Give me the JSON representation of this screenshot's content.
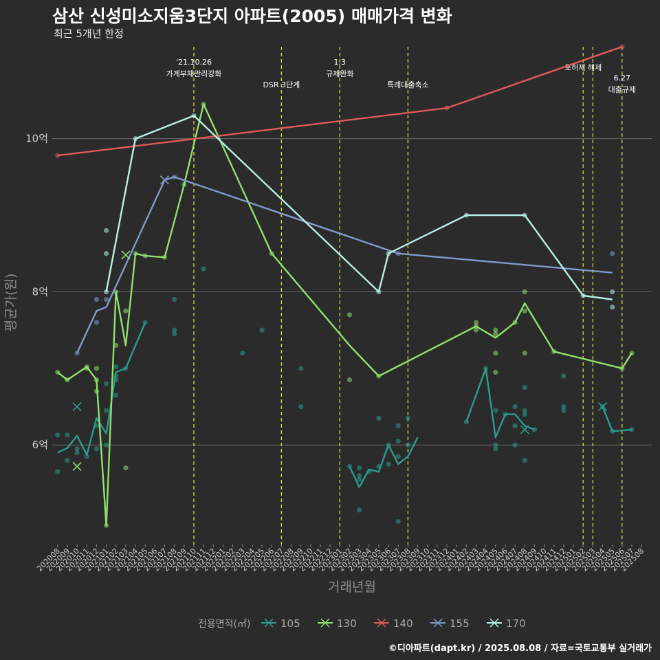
{
  "title": "삼산 신성미소지움3단지 아파트(2005) 매매가격 변화",
  "subtitle": "최근 5개년 한정",
  "caption": "©디아파트(dapt.kr) / 2025.08.08 / 자료=국토교통부 실거래가",
  "chart_data": {
    "type": "line",
    "xlabel": "거래년월",
    "ylabel": "평균가(원)",
    "y_unit": "억",
    "ylim": [
      4.7,
      11.2
    ],
    "yticks": [
      6,
      8,
      10
    ],
    "ytick_labels": [
      "6억",
      "8억",
      "10억"
    ],
    "grid": true,
    "x_months": [
      "202008",
      "202009",
      "202010",
      "202011",
      "202012",
      "202101",
      "202102",
      "202103",
      "202104",
      "202105",
      "202106",
      "202107",
      "202108",
      "202109",
      "202110",
      "202111",
      "202112",
      "202201",
      "202202",
      "202203",
      "202204",
      "202205",
      "202206",
      "202207",
      "202208",
      "202209",
      "202210",
      "202211",
      "202212",
      "202301",
      "202302",
      "202303",
      "202304",
      "202305",
      "202306",
      "202307",
      "202308",
      "202309",
      "202310",
      "202311",
      "202312",
      "202401",
      "202402",
      "202403",
      "202404",
      "202405",
      "202406",
      "202407",
      "202408",
      "202409",
      "202410",
      "202411",
      "202412",
      "202501",
      "202502",
      "202503",
      "202504",
      "202505",
      "202506",
      "202507",
      "202508"
    ],
    "events": [
      {
        "x": "202110",
        "labels": [
          "'21.10.26",
          "가계부채관리강화"
        ]
      },
      {
        "x": "202207",
        "labels": [
          "DSR 3단계"
        ]
      },
      {
        "x": "202301",
        "labels": [
          "1.3",
          "규제완화"
        ]
      },
      {
        "x": "202308",
        "labels": [
          "특례대출축소"
        ]
      },
      {
        "x": "202502",
        "labels": [
          "토허제 해제"
        ]
      },
      {
        "x": "202503",
        "labels": []
      },
      {
        "x": "202506",
        "labels": [
          "6.27",
          "대출규제"
        ]
      }
    ],
    "legend": {
      "title": "전용면적(㎡)",
      "position": "bottom"
    },
    "series": [
      {
        "name": "105",
        "color": "#2a9d8f",
        "line": [
          [
            "202008",
            5.9
          ],
          [
            "202009",
            5.96
          ],
          [
            "202010",
            6.12
          ],
          [
            "202011",
            5.87
          ],
          [
            "202012",
            6.35
          ],
          [
            "202101",
            6.15
          ],
          [
            "202102",
            6.95
          ],
          [
            "202103",
            7.0
          ],
          [
            "202105",
            7.6
          ],
          null,
          [
            "202302",
            5.72
          ],
          [
            "202303",
            5.45
          ],
          [
            "202304",
            5.68
          ],
          [
            "202305",
            5.65
          ],
          [
            "202306",
            6.0
          ],
          [
            "202307",
            5.75
          ],
          [
            "202308",
            5.85
          ],
          [
            "202309",
            6.1
          ],
          null,
          [
            "202402",
            6.3
          ],
          [
            "202404",
            7.0
          ],
          [
            "202405",
            6.1
          ],
          [
            "202406",
            6.4
          ],
          [
            "202407",
            6.4
          ],
          [
            "202408",
            6.25
          ],
          [
            "202409",
            6.2
          ],
          null,
          [
            "202504",
            6.5
          ],
          [
            "202505",
            6.18
          ],
          [
            "202507",
            6.2
          ]
        ],
        "points": [
          [
            "202008",
            6.13
          ],
          [
            "202008",
            5.65
          ],
          [
            "202009",
            6.13
          ],
          [
            "202009",
            5.8
          ],
          [
            "202010",
            5.9
          ],
          [
            "202010",
            5.95
          ],
          [
            "202011",
            5.85
          ],
          [
            "202012",
            6.25
          ],
          [
            "202012",
            5.95
          ],
          [
            "202101",
            6.8
          ],
          [
            "202101",
            6.45
          ],
          [
            "202101",
            6.0
          ],
          [
            "202102",
            7.02
          ],
          [
            "202102",
            6.9
          ],
          [
            "202102",
            6.85
          ],
          [
            "202102",
            6.65
          ],
          [
            "202103",
            7.0
          ],
          [
            "202105",
            7.6
          ],
          [
            "202108",
            7.5
          ],
          [
            "202108",
            7.45
          ],
          [
            "202108",
            7.9
          ],
          [
            "202111",
            8.3
          ],
          [
            "202203",
            7.2
          ],
          [
            "202205",
            7.5
          ],
          [
            "202209",
            7.0
          ],
          [
            "202209",
            6.5
          ],
          [
            "202302",
            5.72
          ],
          [
            "202303",
            5.15
          ],
          [
            "202303",
            5.7
          ],
          [
            "202303",
            5.6
          ],
          [
            "202303",
            5.55
          ],
          [
            "202304",
            5.65
          ],
          [
            "202305",
            6.35
          ],
          [
            "202305",
            5.72
          ],
          [
            "202306",
            6.0
          ],
          [
            "202306",
            5.75
          ],
          [
            "202307",
            6.05
          ],
          [
            "202307",
            5.85
          ],
          [
            "202307",
            6.25
          ],
          [
            "202307",
            5.0
          ],
          [
            "202308",
            6.35
          ],
          [
            "202308",
            6.0
          ],
          [
            "202402",
            6.3
          ],
          [
            "202404",
            7.0
          ],
          [
            "202405",
            6.45
          ],
          [
            "202405",
            6.0
          ],
          [
            "202405",
            5.95
          ],
          [
            "202406",
            6.4
          ],
          [
            "202407",
            6.5
          ],
          [
            "202407",
            6.25
          ],
          [
            "202407",
            6.0
          ],
          [
            "202408",
            6.45
          ],
          [
            "202408",
            6.4
          ],
          [
            "202408",
            5.8
          ],
          [
            "202408",
            6.75
          ],
          [
            "202409",
            6.2
          ],
          [
            "202412",
            6.9
          ],
          [
            "202412",
            6.5
          ],
          [
            "202412",
            6.45
          ],
          [
            "202504",
            6.5
          ],
          [
            "202505",
            6.18
          ],
          [
            "202507",
            6.2
          ]
        ],
        "cancelled": [
          [
            "202010",
            6.5
          ],
          [
            "202408",
            6.2
          ],
          [
            "202504",
            6.5
          ]
        ]
      },
      {
        "name": "130",
        "color": "#8fe26c",
        "line": [
          [
            "202008",
            6.95
          ],
          [
            "202009",
            6.85
          ],
          [
            "202011",
            7.02
          ],
          [
            "202012",
            6.85
          ],
          [
            "202101",
            4.95
          ],
          [
            "202102",
            8.0
          ],
          [
            "202103",
            7.3
          ],
          [
            "202104",
            8.5
          ],
          [
            "202105",
            8.47
          ],
          [
            "202107",
            8.45
          ],
          [
            "202109",
            9.4
          ],
          [
            "202111",
            10.45
          ],
          [
            "202206",
            8.5
          ],
          [
            "202302",
            7.3
          ],
          [
            "202305",
            6.9
          ],
          [
            "202403",
            7.55
          ],
          [
            "202405",
            7.4
          ],
          [
            "202407",
            7.6
          ],
          [
            "202408",
            7.85
          ],
          [
            "202411",
            7.22
          ],
          [
            "202506",
            7.0
          ],
          [
            "202507",
            7.2
          ]
        ],
        "points": [
          [
            "202008",
            6.95
          ],
          [
            "202009",
            6.85
          ],
          [
            "202011",
            7.02
          ],
          [
            "202011",
            7.0
          ],
          [
            "202012",
            6.85
          ],
          [
            "202012",
            7.0
          ],
          [
            "202012",
            6.7
          ],
          [
            "202101",
            4.95
          ],
          [
            "202102",
            8.0
          ],
          [
            "202102",
            7.3
          ],
          [
            "202103",
            7.75
          ],
          [
            "202103",
            5.7
          ],
          [
            "202104",
            8.5
          ],
          [
            "202105",
            8.47
          ],
          [
            "202107",
            8.45
          ],
          [
            "202109",
            9.4
          ],
          [
            "202111",
            10.45
          ],
          [
            "202206",
            8.5
          ],
          [
            "202302",
            7.7
          ],
          [
            "202302",
            6.85
          ],
          [
            "202305",
            6.9
          ],
          [
            "202403",
            7.6
          ],
          [
            "202403",
            7.55
          ],
          [
            "202403",
            7.5
          ],
          [
            "202405",
            7.5
          ],
          [
            "202405",
            7.45
          ],
          [
            "202405",
            7.2
          ],
          [
            "202405",
            6.95
          ],
          [
            "202407",
            7.6
          ],
          [
            "202408",
            8.0
          ],
          [
            "202408",
            7.75
          ],
          [
            "202408",
            7.2
          ],
          [
            "202411",
            7.22
          ],
          [
            "202506",
            7.0
          ],
          [
            "202507",
            7.2
          ]
        ],
        "cancelled": [
          [
            "202010",
            5.72
          ],
          [
            "202103",
            8.48
          ]
        ]
      },
      {
        "name": "140",
        "color": "#e05a5a",
        "line": [
          [
            "202008",
            9.78
          ],
          [
            "202312",
            10.4
          ],
          [
            "202506",
            11.2
          ]
        ],
        "points": [
          [
            "202008",
            9.78
          ],
          [
            "202312",
            10.4
          ],
          [
            "202506",
            11.2
          ]
        ],
        "cancelled": []
      },
      {
        "name": "155",
        "color": "#7f9ccc",
        "line": [
          [
            "202010",
            7.2
          ],
          [
            "202012",
            7.75
          ],
          [
            "202101",
            7.8
          ],
          [
            "202107",
            9.46
          ],
          [
            "202108",
            9.5
          ],
          [
            "202307",
            8.5
          ],
          [
            "202505",
            8.25
          ]
        ],
        "points": [
          [
            "202010",
            7.2
          ],
          [
            "202012",
            7.9
          ],
          [
            "202012",
            7.6
          ],
          [
            "202101",
            7.9
          ],
          [
            "202108",
            9.5
          ],
          [
            "202307",
            8.5
          ],
          [
            "202505",
            8.5
          ]
        ],
        "cancelled": [
          [
            "202107",
            9.46
          ]
        ]
      },
      {
        "name": "170",
        "color": "#b6f0e6",
        "line": [
          [
            "202101",
            8.0
          ],
          [
            "202104",
            10.0
          ],
          [
            "202110",
            10.3
          ],
          [
            "202305",
            8.0
          ],
          [
            "202306",
            8.5
          ],
          [
            "202402",
            9.0
          ],
          [
            "202408",
            9.0
          ],
          [
            "202502",
            7.95
          ],
          [
            "202505",
            7.9
          ]
        ],
        "points": [
          [
            "202101",
            8.8
          ],
          [
            "202101",
            8.5
          ],
          [
            "202101",
            8.0
          ],
          [
            "202104",
            10.0
          ],
          [
            "202110",
            10.3
          ],
          [
            "202305",
            8.0
          ],
          [
            "202306",
            8.5
          ],
          [
            "202402",
            9.0
          ],
          [
            "202408",
            9.0
          ],
          [
            "202502",
            7.95
          ],
          [
            "202505",
            8.0
          ],
          [
            "202505",
            7.8
          ]
        ],
        "cancelled": []
      }
    ]
  }
}
